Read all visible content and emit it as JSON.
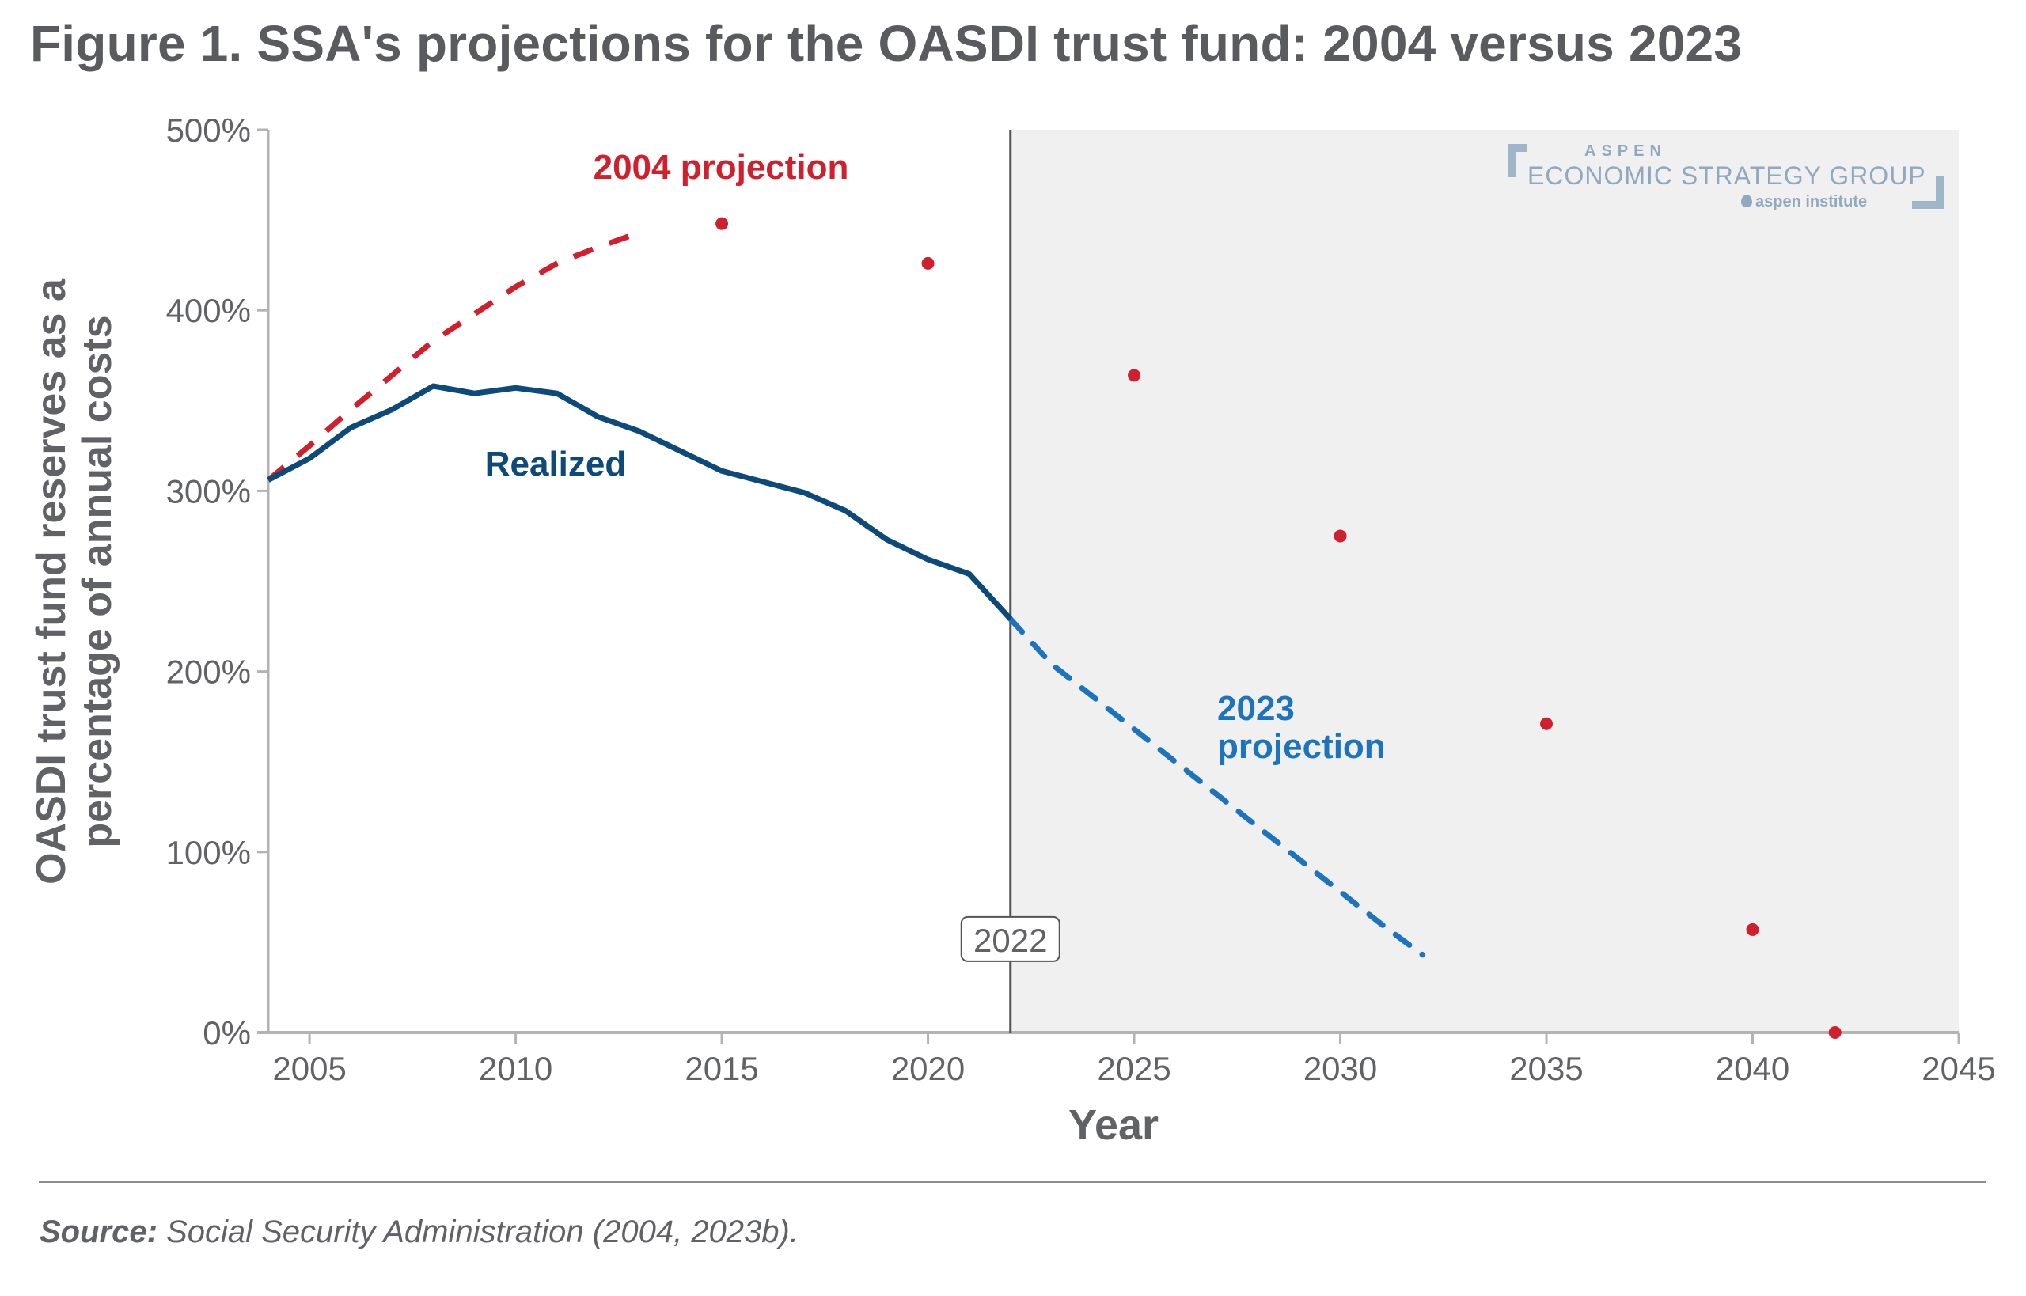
{
  "title": "Figure 1. SSA's projections for the OASDI trust fund: 2004 versus 2023",
  "logo": {
    "line1": "ASPEN",
    "line2": "ECONOMIC STRATEGY GROUP",
    "line3": "aspen institute"
  },
  "source": {
    "label": "Source:",
    "text": " Social Security Administration (2004, 2023b)."
  },
  "colors": {
    "realized": "#0d4a7a",
    "proj2004": "#d0202e",
    "proj2023": "#1c75bc",
    "shade": "#f0f0f0",
    "axis": "#b3b3b3",
    "text": "#616265"
  },
  "chart_data": {
    "type": "line",
    "title": "Figure 1. SSA's projections for the OASDI trust fund: 2004 versus 2023",
    "xlabel": "Year",
    "ylabel": [
      "OASDI trust fund reserves as a",
      "percentage of annual costs"
    ],
    "xlim": [
      2004,
      2045
    ],
    "ylim": [
      0,
      500
    ],
    "x_ticks": [
      2005,
      2010,
      2015,
      2020,
      2025,
      2030,
      2035,
      2040,
      2045
    ],
    "x_tick_labels": [
      "2005",
      "2010",
      "2015",
      "2020",
      "2025",
      "2030",
      "2035",
      "2040",
      "2045"
    ],
    "y_ticks": [
      0,
      100,
      200,
      300,
      400,
      500
    ],
    "y_tick_labels": [
      "0%",
      "100%",
      "200%",
      "300%",
      "400%",
      "500%"
    ],
    "grid": false,
    "legend": "none (direct labels)",
    "shaded_region": {
      "from": 2022,
      "to": 2045,
      "label": "2022"
    },
    "reference_line": {
      "x": 2022,
      "label": "2022"
    },
    "series": [
      {
        "name": "Realized",
        "style": "solid",
        "x": [
          2004,
          2005,
          2006,
          2007,
          2008,
          2009,
          2010,
          2011,
          2012,
          2013,
          2014,
          2015,
          2016,
          2017,
          2018,
          2019,
          2020,
          2021,
          2022
        ],
        "values": [
          306,
          318,
          335,
          345,
          358,
          354,
          357,
          354,
          341,
          333,
          322,
          311,
          305,
          299,
          289,
          273,
          262,
          254,
          229
        ]
      },
      {
        "name": "2004 projection",
        "style": "dashed",
        "x": [
          2004,
          2005,
          2006,
          2007,
          2008,
          2009,
          2010,
          2011,
          2012,
          2013
        ],
        "values": [
          306,
          325,
          345,
          364,
          383,
          398,
          413,
          426,
          435,
          443
        ]
      },
      {
        "name": "2004 projection (5-year points)",
        "style": "points",
        "x": [
          2015,
          2020,
          2025,
          2030,
          2035,
          2040,
          2042
        ],
        "values": [
          448,
          426,
          364,
          275,
          171,
          57,
          0
        ]
      },
      {
        "name": "2023 projection",
        "style": "dashed",
        "x": [
          2022,
          2023,
          2024,
          2025,
          2026,
          2027,
          2028,
          2029,
          2030,
          2031,
          2032
        ],
        "values": [
          229,
          204,
          186,
          168,
          150,
          132,
          114,
          96,
          78,
          60,
          43
        ]
      }
    ],
    "annotations": [
      {
        "text": "2004 projection",
        "series": "2004 projection"
      },
      {
        "text": "Realized",
        "series": "Realized"
      },
      {
        "text": "2023\nprojection",
        "series": "2023 projection"
      },
      {
        "text": "2022",
        "type": "reference-line-label"
      }
    ]
  }
}
